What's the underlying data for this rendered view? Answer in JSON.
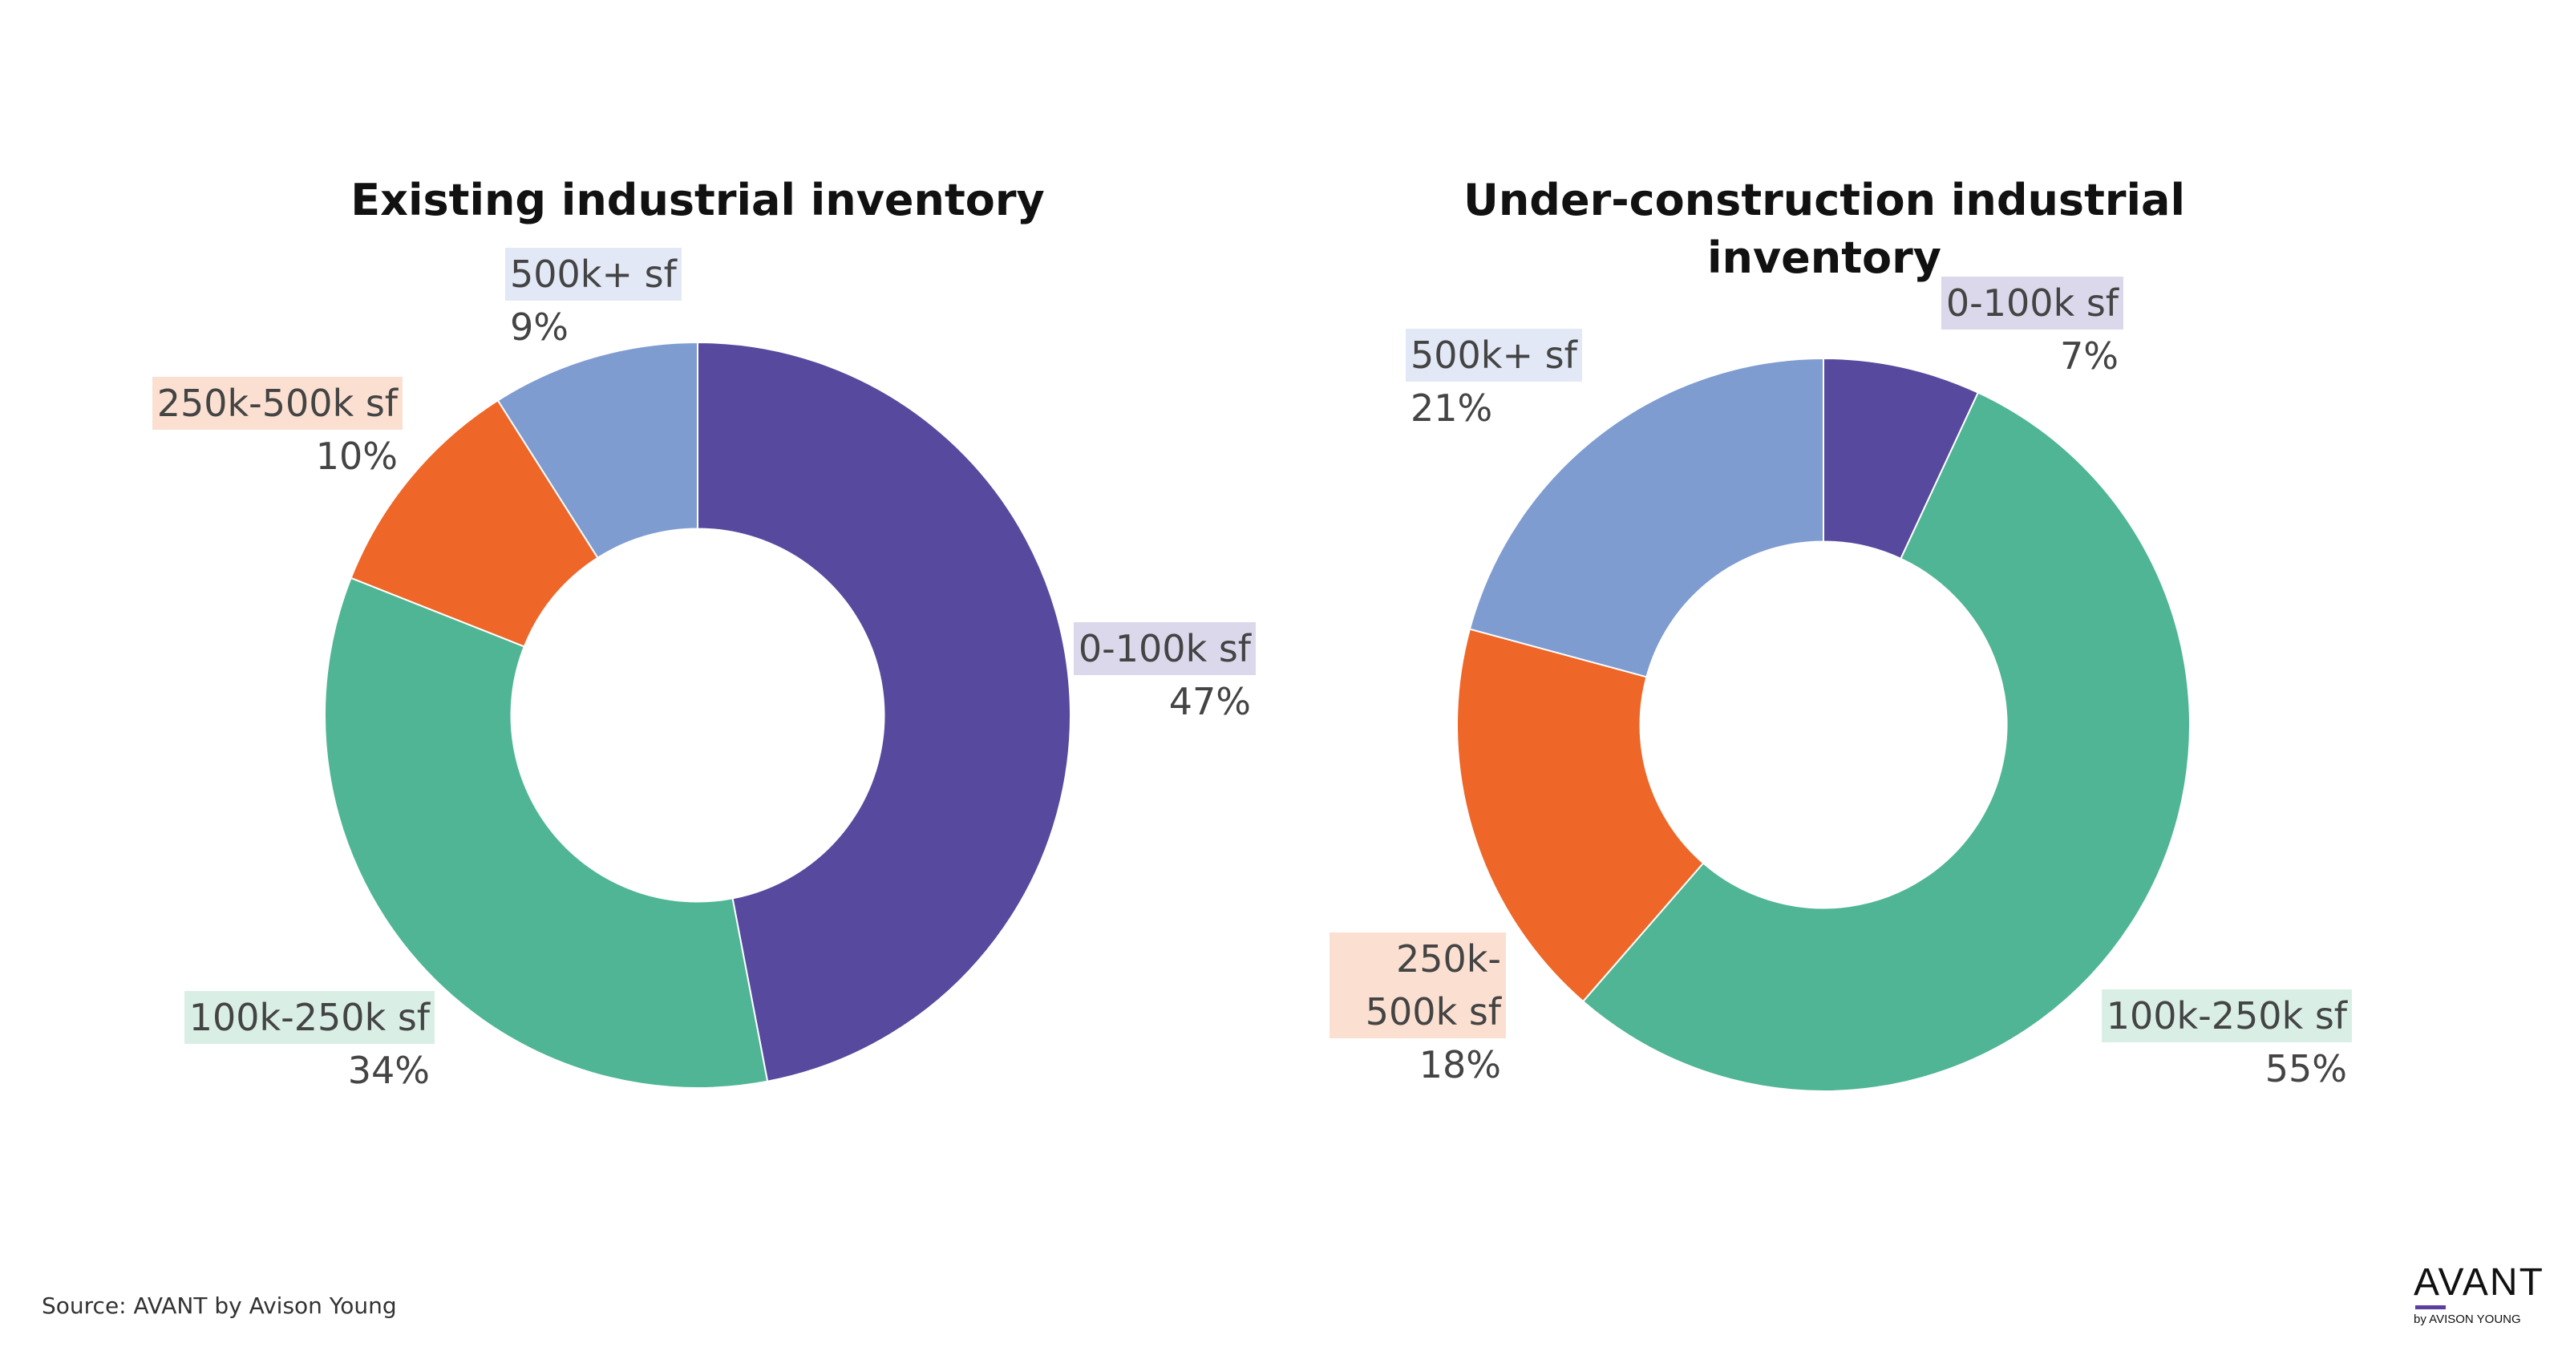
{
  "chart_data": [
    {
      "type": "pie",
      "title": "Existing industrial inventory",
      "categories": [
        "0-100k sf",
        "100k-250k sf",
        "250k-500k sf",
        "500k+ sf"
      ],
      "values": [
        47,
        34,
        10,
        9
      ],
      "value_labels": [
        "47%",
        "34%",
        "10%",
        "9%"
      ],
      "colors": [
        "#57499e",
        "#4fb595",
        "#ee6628",
        "#7f9cd1"
      ],
      "hole": 0.5,
      "legend": "none"
    },
    {
      "type": "pie",
      "title": "Under-construction industrial inventory",
      "categories": [
        "0-100k sf",
        "100k-250k sf",
        "250k-500k sf",
        "500k+ sf"
      ],
      "values": [
        7,
        55,
        18,
        21
      ],
      "value_labels": [
        "7%",
        "55%",
        "18%",
        "21%"
      ],
      "colors": [
        "#57499e",
        "#4fb595",
        "#ee6628",
        "#7f9cd1"
      ],
      "hole": 0.5,
      "legend": "none"
    }
  ],
  "label_highlights": [
    "#dcd8ec",
    "#d9efe6",
    "#fbe0d2",
    "#e2e8f6"
  ],
  "source": "Source: AVANT by Avison Young",
  "logo": {
    "brand": "AVANT",
    "tagline": "by AVISON YOUNG"
  }
}
